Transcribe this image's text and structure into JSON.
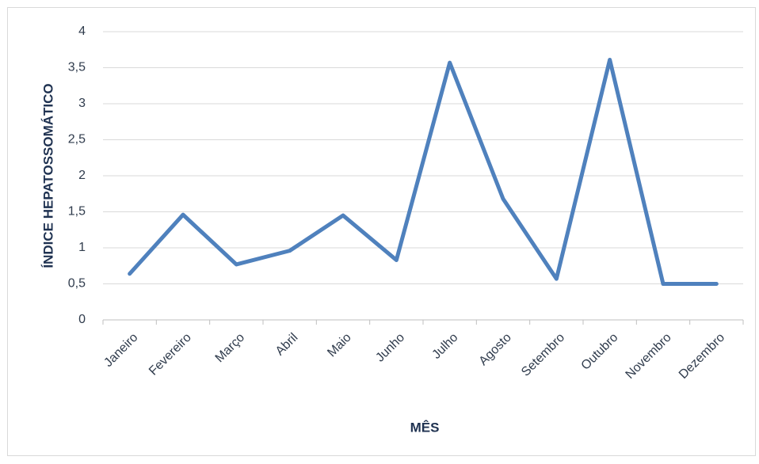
{
  "chart_data": {
    "type": "line",
    "x_label": "MÊS",
    "y_label": "ÍNDICE HEPATOSSOMÁTICO",
    "categories": [
      "Janeiro",
      "Fevereiro",
      "Março",
      "Abril",
      "Maio",
      "Junho",
      "Julho",
      "Agosto",
      "Setembro",
      "Outubro",
      "Novembro",
      "Dezembro"
    ],
    "series": [
      {
        "color": "#4f81bd",
        "values": [
          0.64,
          1.46,
          0.77,
          0.96,
          1.45,
          0.83,
          3.57,
          1.68,
          0.57,
          3.61,
          0.5,
          0.5
        ]
      }
    ],
    "ylim": [
      0,
      4
    ],
    "yticks": [
      0,
      {
        "value": 0.5,
        "label": "0,5"
      },
      1,
      {
        "value": 1.5,
        "label": "1,5"
      },
      2,
      {
        "value": 2.5,
        "label": "2,5"
      },
      3,
      {
        "value": 3.5,
        "label": "3,5"
      },
      4
    ],
    "grid": true
  }
}
